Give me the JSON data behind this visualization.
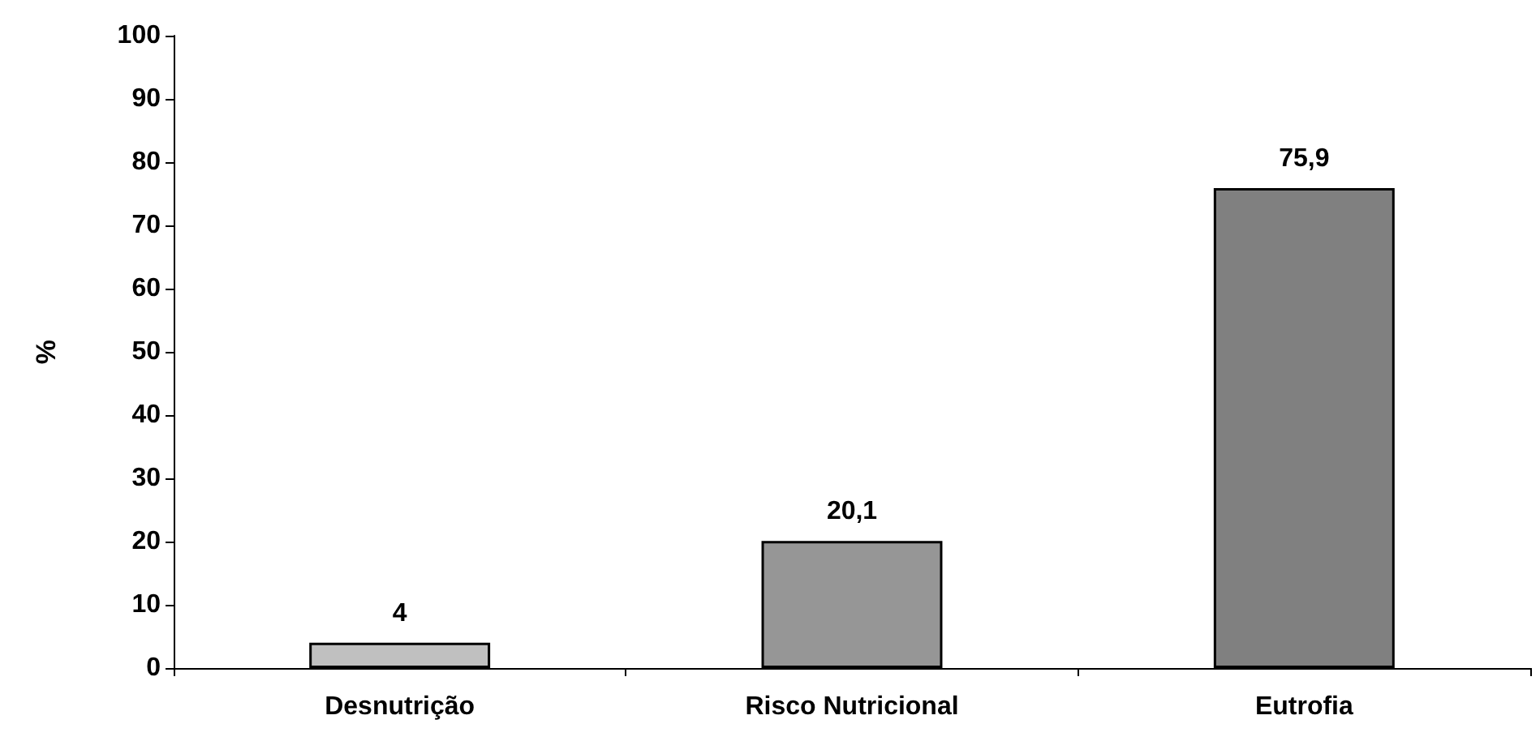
{
  "chart_data": {
    "type": "bar",
    "ylabel": "%",
    "categories": [
      "Desnutrição",
      "Risco Nutricional",
      "Eutrofia"
    ],
    "values": [
      4,
      20.1,
      75.9
    ],
    "colors": [
      "#c0c0c0",
      "#969696",
      "#808080"
    ],
    "value_labels": [
      "4",
      "20,1",
      "75,9"
    ],
    "ylim": [
      0,
      100
    ],
    "yticks": [
      0,
      10,
      20,
      30,
      40,
      50,
      60,
      70,
      80,
      90,
      100
    ],
    "grid": false
  }
}
